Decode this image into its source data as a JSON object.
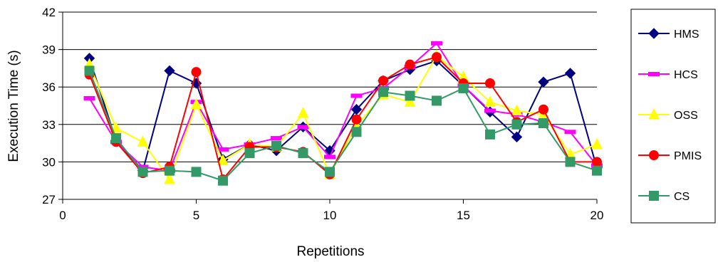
{
  "chart_data": {
    "type": "line",
    "title": "",
    "xlabel": "Repetitions",
    "ylabel": "Execution Time (s)",
    "xlim": [
      0,
      20
    ],
    "ylim": [
      27,
      42
    ],
    "xticks": [
      "0",
      "5",
      "10",
      "15",
      "20"
    ],
    "yticks": [
      "27",
      "30",
      "33",
      "36",
      "39",
      "42"
    ],
    "grid": "horizontal",
    "legend_position": "right",
    "x": [
      1,
      2,
      3,
      4,
      5,
      6,
      7,
      8,
      9,
      10,
      11,
      12,
      13,
      14,
      15,
      16,
      17,
      18,
      19,
      20
    ],
    "series": [
      {
        "name": "HMS",
        "color": "#000080",
        "marker": "diamond",
        "values": [
          38.3,
          31.7,
          29.3,
          37.3,
          36.3,
          30.2,
          31.4,
          30.9,
          32.8,
          30.9,
          34.2,
          36.5,
          37.4,
          38.1,
          36.1,
          34.0,
          32.0,
          36.4,
          37.1,
          29.5
        ]
      },
      {
        "name": "HCS",
        "color": "#FF00FF",
        "marker": "dash",
        "values": [
          35.1,
          31.6,
          29.6,
          29.3,
          34.8,
          31.0,
          31.4,
          31.9,
          32.8,
          30.4,
          35.3,
          35.9,
          37.6,
          39.5,
          36.1,
          34.1,
          33.8,
          33.2,
          32.4,
          29.7
        ]
      },
      {
        "name": "OSS",
        "color": "#FFFF00",
        "marker": "triangle",
        "values": [
          37.8,
          32.7,
          31.6,
          28.6,
          34.6,
          30.1,
          31.4,
          31.2,
          33.9,
          29.0,
          32.9,
          35.4,
          34.8,
          38.5,
          36.8,
          34.8,
          34.1,
          33.8,
          30.6,
          31.4
        ]
      },
      {
        "name": "PMIS",
        "color": "#FF0000",
        "marker": "circle",
        "values": [
          37.0,
          31.6,
          29.1,
          29.6,
          37.2,
          28.6,
          31.2,
          31.2,
          30.8,
          29.0,
          33.4,
          36.5,
          37.8,
          38.4,
          36.3,
          36.3,
          33.2,
          34.2,
          30.0,
          30.0
        ]
      },
      {
        "name": "CS",
        "color": "#339966",
        "marker": "square",
        "values": [
          37.3,
          31.9,
          29.2,
          29.3,
          29.2,
          28.5,
          30.7,
          31.3,
          30.7,
          29.2,
          32.4,
          35.6,
          35.3,
          34.9,
          35.9,
          32.2,
          33.0,
          33.1,
          30.0,
          29.3
        ]
      }
    ]
  }
}
